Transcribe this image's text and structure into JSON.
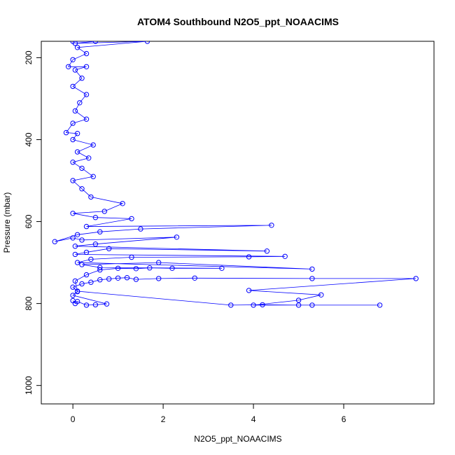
{
  "chart_data": {
    "type": "scatter",
    "title": "ATOM4 Southbound N2O5_ppt_NOAACIMS",
    "xlabel": "N2O5_ppt_NOAACIMS",
    "ylabel": "Pressure (mbar)",
    "xlim": [
      -0.7,
      8.0
    ],
    "ylim": [
      1045,
      160
    ],
    "y_reversed": true,
    "x_ticks": [
      0,
      2,
      4,
      6
    ],
    "y_ticks": [
      200,
      400,
      600,
      800,
      1000
    ],
    "grid": false,
    "series_color": "#0000ff",
    "marker": "open-circle",
    "connected": true,
    "series": [
      {
        "values": [
          [
            0.0,
            793
          ],
          [
            0.05,
            800
          ],
          [
            0.1,
            795
          ],
          [
            0.3,
            804
          ],
          [
            0.5,
            803
          ],
          [
            0.75,
            801
          ],
          [
            0.0,
            780
          ],
          [
            0.1,
            771
          ],
          [
            0.0,
            760
          ],
          [
            0.2,
            752
          ],
          [
            0.4,
            748
          ],
          [
            0.6,
            742
          ],
          [
            0.8,
            740
          ],
          [
            1.0,
            738
          ],
          [
            1.2,
            737
          ],
          [
            1.4,
            741
          ],
          [
            1.9,
            739
          ],
          [
            2.7,
            738
          ],
          [
            5.3,
            739
          ],
          [
            7.6,
            739
          ],
          [
            3.9,
            768
          ],
          [
            5.5,
            779
          ],
          [
            5.0,
            792
          ],
          [
            4.0,
            804
          ],
          [
            5.3,
            804
          ],
          [
            6.8,
            804
          ],
          [
            5.0,
            804
          ],
          [
            4.2,
            803
          ],
          [
            3.5,
            804
          ],
          [
            0.1,
            770
          ],
          [
            0.05,
            745
          ],
          [
            0.3,
            730
          ],
          [
            0.6,
            718
          ],
          [
            1.0,
            714
          ],
          [
            1.4,
            715
          ],
          [
            1.7,
            713
          ],
          [
            2.2,
            714
          ],
          [
            3.3,
            714
          ],
          [
            0.6,
            712
          ],
          [
            0.2,
            705
          ],
          [
            1.9,
            700
          ],
          [
            5.3,
            716
          ],
          [
            0.1,
            700
          ],
          [
            0.4,
            692
          ],
          [
            1.3,
            687
          ],
          [
            3.9,
            686
          ],
          [
            4.7,
            685
          ],
          [
            0.05,
            680
          ],
          [
            0.3,
            675
          ],
          [
            0.8,
            666
          ],
          [
            4.3,
            672
          ],
          [
            0.05,
            660
          ],
          [
            0.5,
            655
          ],
          [
            2.3,
            638
          ],
          [
            0.2,
            645
          ],
          [
            0.0,
            640
          ],
          [
            -0.4,
            649
          ],
          [
            0.1,
            632
          ],
          [
            0.6,
            625
          ],
          [
            1.5,
            618
          ],
          [
            4.4,
            609
          ],
          [
            0.3,
            612
          ],
          [
            1.3,
            593
          ],
          [
            0.5,
            590
          ],
          [
            0.0,
            580
          ],
          [
            0.7,
            575
          ],
          [
            1.1,
            556
          ],
          [
            0.4,
            540
          ],
          [
            0.2,
            520
          ],
          [
            0.0,
            500
          ],
          [
            0.45,
            490
          ],
          [
            0.2,
            470
          ],
          [
            0.0,
            455
          ],
          [
            0.35,
            445
          ],
          [
            0.1,
            430
          ],
          [
            0.45,
            413
          ],
          [
            0.0,
            400
          ],
          [
            0.1,
            385
          ],
          [
            -0.15,
            383
          ],
          [
            0.0,
            360
          ],
          [
            0.3,
            350
          ],
          [
            0.05,
            330
          ],
          [
            0.15,
            310
          ],
          [
            0.3,
            290
          ],
          [
            0.0,
            270
          ],
          [
            0.2,
            250
          ],
          [
            0.05,
            230
          ],
          [
            0.3,
            222
          ],
          [
            -0.1,
            222
          ],
          [
            0.0,
            205
          ],
          [
            0.3,
            190
          ],
          [
            0.1,
            175
          ],
          [
            1.65,
            160
          ],
          [
            0.05,
            165
          ],
          [
            0.5,
            160
          ],
          [
            0.0,
            160
          ]
        ]
      }
    ]
  }
}
